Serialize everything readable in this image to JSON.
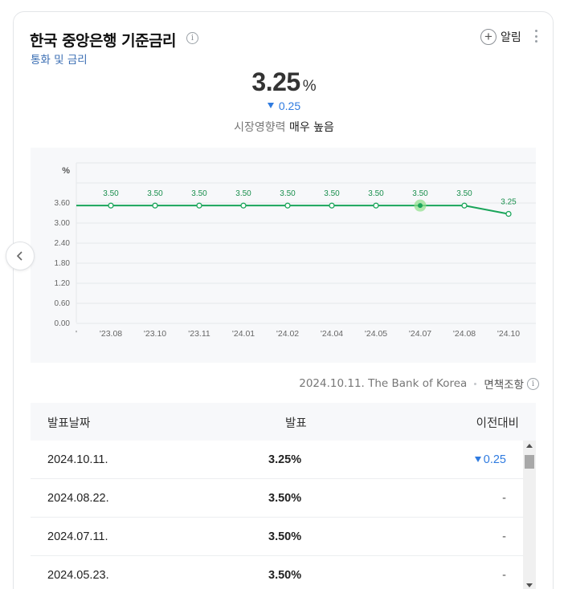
{
  "header": {
    "title": "한국 중앙은행 기준금리",
    "subtitle": "통화 및 금리",
    "alarm_label": "알림"
  },
  "summary": {
    "value": "3.25",
    "unit": "%",
    "change": "0.25",
    "impact_label": "시장영향력",
    "impact_value": "매우 높음"
  },
  "chart_data": {
    "type": "line",
    "ylabel": "%",
    "yticks": [
      "3.60",
      "3.00",
      "2.40",
      "1.80",
      "1.20",
      "0.60",
      "0.00"
    ],
    "ylim": [
      0,
      4.2
    ],
    "categories": [
      "'23.08",
      "'23.10",
      "'23.11",
      "'24.01",
      "'24.02",
      "'24.04",
      "'24.05",
      "'24.07",
      "'24.08",
      "'24.10"
    ],
    "values": [
      3.5,
      3.5,
      3.5,
      3.5,
      3.5,
      3.5,
      3.5,
      3.5,
      3.5,
      3.25
    ],
    "value_labels": [
      "3.50",
      "3.50",
      "3.50",
      "3.50",
      "3.50",
      "3.50",
      "3.50",
      "3.50",
      "3.50",
      "3.25"
    ],
    "highlight_index": 7,
    "grid": true,
    "colors": {
      "line": "#1aa55a",
      "highlight": "#8ee08a"
    }
  },
  "source": {
    "text": "2024.10.11. The Bank of Korea",
    "disclaimer": "면책조항"
  },
  "table": {
    "headers": {
      "date": "발표날짜",
      "value": "발표",
      "change": "이전대비"
    },
    "rows": [
      {
        "date": "2024.10.11.",
        "value": "3.25%",
        "change": "0.25",
        "direction": "down"
      },
      {
        "date": "2024.08.22.",
        "value": "3.50%",
        "change": "-",
        "direction": "flat"
      },
      {
        "date": "2024.07.11.",
        "value": "3.50%",
        "change": "-",
        "direction": "flat"
      },
      {
        "date": "2024.05.23.",
        "value": "3.50%",
        "change": "-",
        "direction": "flat"
      }
    ]
  },
  "icons": {
    "info": "info-icon",
    "add": "plus-circle-icon",
    "more": "more-vertical-icon",
    "prev": "chevron-left-icon",
    "down": "triangle-down-icon"
  }
}
